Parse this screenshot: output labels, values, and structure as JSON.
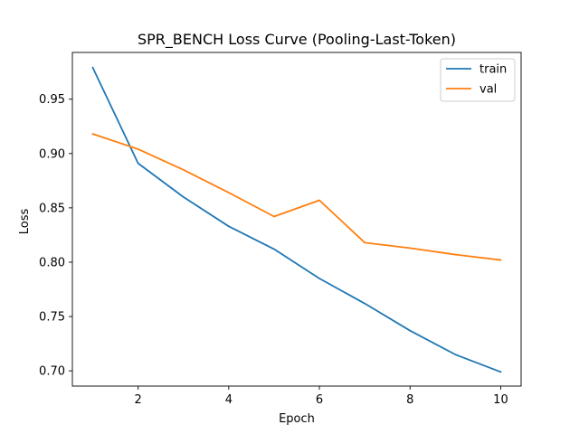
{
  "chart_data": {
    "type": "line",
    "title": "SPR_BENCH Loss Curve (Pooling-Last-Token)",
    "xlabel": "Epoch",
    "ylabel": "Loss",
    "x": [
      1,
      2,
      3,
      4,
      5,
      6,
      7,
      8,
      9,
      10
    ],
    "xlim": [
      0.55,
      10.45
    ],
    "ylim": [
      0.686,
      0.993
    ],
    "xticks": [
      2,
      4,
      6,
      8,
      10
    ],
    "xtick_labels": [
      "2",
      "4",
      "6",
      "8",
      "10"
    ],
    "yticks": [
      0.7,
      0.75,
      0.8,
      0.85,
      0.9,
      0.95
    ],
    "ytick_labels": [
      "0.70",
      "0.75",
      "0.80",
      "0.85",
      "0.90",
      "0.95"
    ],
    "grid": false,
    "legend": "top-right",
    "series": [
      {
        "name": "train",
        "color": "#1f77b4",
        "values": [
          0.979,
          0.891,
          0.86,
          0.833,
          0.812,
          0.785,
          0.762,
          0.737,
          0.715,
          0.699
        ]
      },
      {
        "name": "val",
        "color": "#ff7f0e",
        "values": [
          0.918,
          0.904,
          0.885,
          0.864,
          0.842,
          0.857,
          0.818,
          0.813,
          0.807,
          0.802
        ]
      }
    ]
  }
}
